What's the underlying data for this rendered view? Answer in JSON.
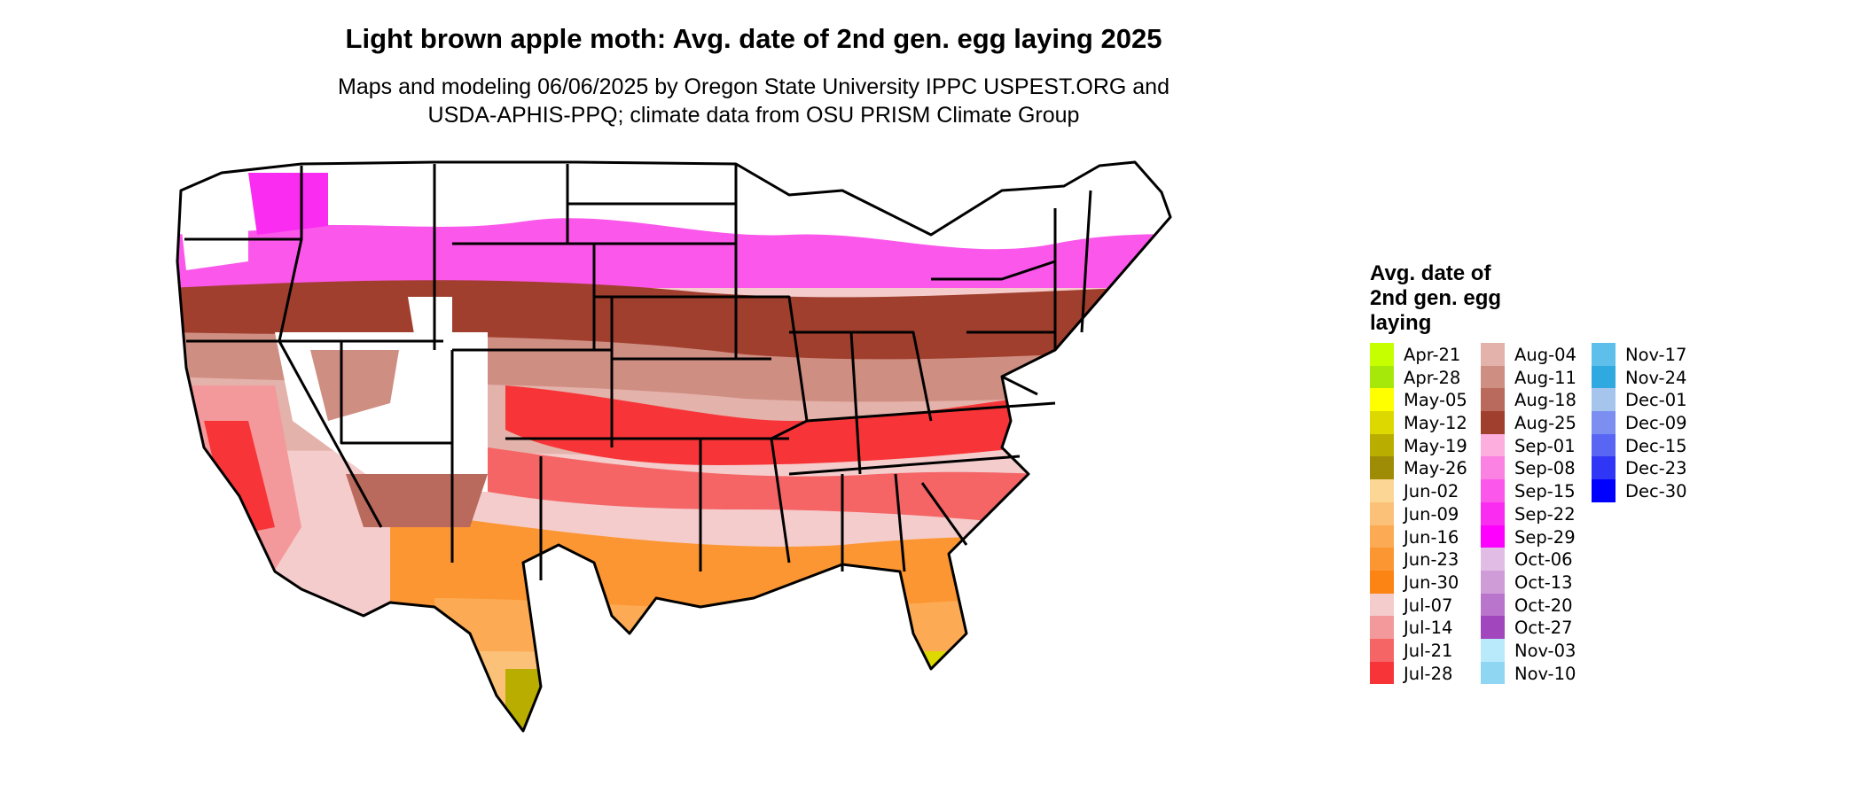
{
  "title": "Light brown apple moth: Avg. date of 2nd gen. egg laying 2025",
  "subtitle_line1": "Maps and modeling 06/06/2025 by Oregon State University IPPC USPEST.ORG and",
  "subtitle_line2": "USDA-APHIS-PPQ; climate data from OSU PRISM Climate Group",
  "legend": {
    "title_lines": [
      "Avg. date of",
      "2nd gen. egg",
      "laying"
    ],
    "columns": [
      [
        {
          "label": "Apr-21",
          "color": "#c6ff00"
        },
        {
          "label": "Apr-28",
          "color": "#a6e80a"
        },
        {
          "label": "May-05",
          "color": "#ffff00"
        },
        {
          "label": "May-12",
          "color": "#dcd800"
        },
        {
          "label": "May-19",
          "color": "#b9ad00"
        },
        {
          "label": "May-26",
          "color": "#9e8c07"
        },
        {
          "label": "Jun-02",
          "color": "#fcd694"
        },
        {
          "label": "Jun-09",
          "color": "#fcc179"
        },
        {
          "label": "Jun-16",
          "color": "#fcab54"
        },
        {
          "label": "Jun-23",
          "color": "#fc9632"
        },
        {
          "label": "Jun-30",
          "color": "#fc8414"
        },
        {
          "label": "Jul-07",
          "color": "#f4cccc"
        },
        {
          "label": "Jul-14",
          "color": "#f4999b"
        },
        {
          "label": "Jul-21",
          "color": "#f56566"
        },
        {
          "label": "Jul-28",
          "color": "#f73538"
        }
      ],
      [
        {
          "label": "Aug-04",
          "color": "#e3b2aa"
        },
        {
          "label": "Aug-11",
          "color": "#cf8e82"
        },
        {
          "label": "Aug-18",
          "color": "#b96a5c"
        },
        {
          "label": "Aug-25",
          "color": "#a03f2e"
        },
        {
          "label": "Sep-01",
          "color": "#fdaedf"
        },
        {
          "label": "Sep-08",
          "color": "#fb82e2"
        },
        {
          "label": "Sep-15",
          "color": "#fb57ea"
        },
        {
          "label": "Sep-22",
          "color": "#fb2cf1"
        },
        {
          "label": "Sep-29",
          "color": "#fd00fe"
        },
        {
          "label": "Oct-06",
          "color": "#e1bde6"
        },
        {
          "label": "Oct-13",
          "color": "#cf9cd8"
        },
        {
          "label": "Oct-20",
          "color": "#b975cb"
        },
        {
          "label": "Oct-27",
          "color": "#a146bd"
        },
        {
          "label": "Nov-03",
          "color": "#b9eafc"
        },
        {
          "label": "Nov-10",
          "color": "#8fd6f3"
        }
      ],
      [
        {
          "label": "Nov-17",
          "color": "#5ec0ea"
        },
        {
          "label": "Nov-24",
          "color": "#30a9e0"
        },
        {
          "label": "Dec-01",
          "color": "#a6c5ed"
        },
        {
          "label": "Dec-09",
          "color": "#7c8ff0"
        },
        {
          "label": "Dec-15",
          "color": "#5866f3"
        },
        {
          "label": "Dec-23",
          "color": "#3036f6"
        },
        {
          "label": "Dec-30",
          "color": "#0000ff"
        }
      ]
    ]
  }
}
